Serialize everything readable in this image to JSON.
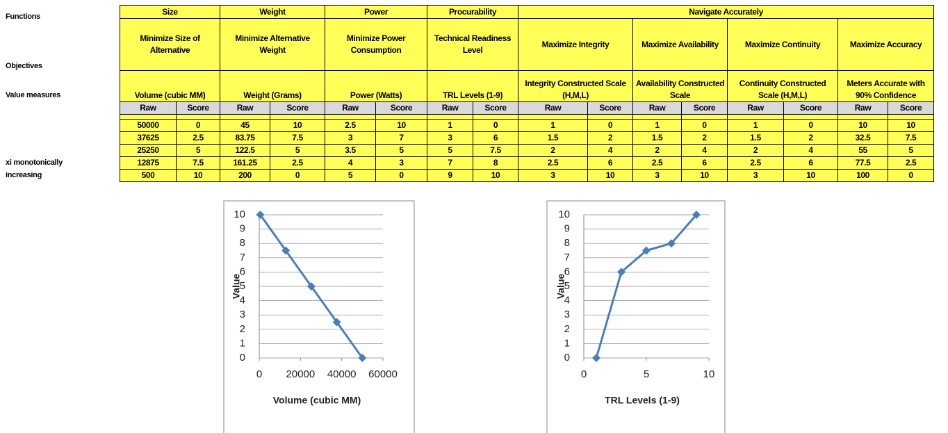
{
  "labels": {
    "functions": "Functions",
    "objectives": "Objectives",
    "value_measures": "Value measures",
    "note": [
      "xi monotonically",
      "increasing"
    ]
  },
  "table": {
    "functions": [
      "Size",
      "Weight",
      "Power",
      "Procurability",
      "Navigate Accurately"
    ],
    "objectives": [
      "Minimize Size of Alternative",
      "Minimize Alternative Weight",
      "Minimize Power Consumption",
      "Technical Readiness Level",
      "Maximize Integrity",
      "Maximize Availability",
      "Maximize Continuity",
      "Maximize Accuracy"
    ],
    "measures": [
      "Volume (cubic MM)",
      "Weight (Grams)",
      "Power (Watts)",
      "TRL Levels (1-9)",
      "Integrity Constructed Scale (H,M,L)",
      "Availability Constructed Scale",
      "Continuity Constructed Scale (H,M,L)",
      "Meters Accurate with 90% Confidence"
    ],
    "subheaders": [
      "Raw",
      "Score"
    ],
    "rows": [
      [
        50000,
        0,
        45,
        10,
        2.5,
        10,
        1,
        0,
        1,
        0,
        1,
        0,
        1,
        0,
        10,
        10
      ],
      [
        37625,
        2.5,
        83.75,
        7.5,
        3,
        7,
        3,
        6,
        1.5,
        2,
        1.5,
        2,
        1.5,
        2,
        32.5,
        7.5
      ],
      [
        25250,
        5,
        122.5,
        5,
        3.5,
        5,
        5,
        7.5,
        2,
        4,
        2,
        4,
        2,
        4,
        55,
        5
      ],
      [
        12875,
        7.5,
        161.25,
        2.5,
        4,
        3,
        7,
        8,
        2.5,
        6,
        2.5,
        6,
        2.5,
        6,
        77.5,
        2.5
      ],
      [
        500,
        10,
        200,
        0,
        5,
        0,
        9,
        10,
        3,
        10,
        3,
        10,
        3,
        10,
        100,
        0
      ]
    ]
  },
  "charts": [
    {
      "type": "line",
      "xlabel": "Volume (cubic MM)",
      "ylabel": "Value",
      "color": "#4a7ebb",
      "x": [
        500,
        12875,
        25250,
        37625,
        50000
      ],
      "y": [
        10,
        7.5,
        5,
        2.5,
        0
      ],
      "xlim": [
        0,
        60000
      ],
      "ylim": [
        0,
        10
      ],
      "xticks": [
        0,
        20000,
        40000,
        60000
      ],
      "yticks": [
        0,
        1,
        2,
        3,
        4,
        5,
        6,
        7,
        8,
        9,
        10
      ],
      "grid": true
    },
    {
      "type": "line",
      "xlabel": "TRL Levels (1-9)",
      "ylabel": "Value",
      "color": "#4a7ebb",
      "x": [
        1,
        3,
        5,
        7,
        9
      ],
      "y": [
        0,
        6,
        7.5,
        8,
        10
      ],
      "xlim": [
        0,
        10
      ],
      "ylim": [
        0,
        10
      ],
      "xticks": [
        0,
        5,
        10
      ],
      "yticks": [
        0,
        1,
        2,
        3,
        4,
        5,
        6,
        7,
        8,
        9,
        10
      ],
      "grid": true
    }
  ]
}
